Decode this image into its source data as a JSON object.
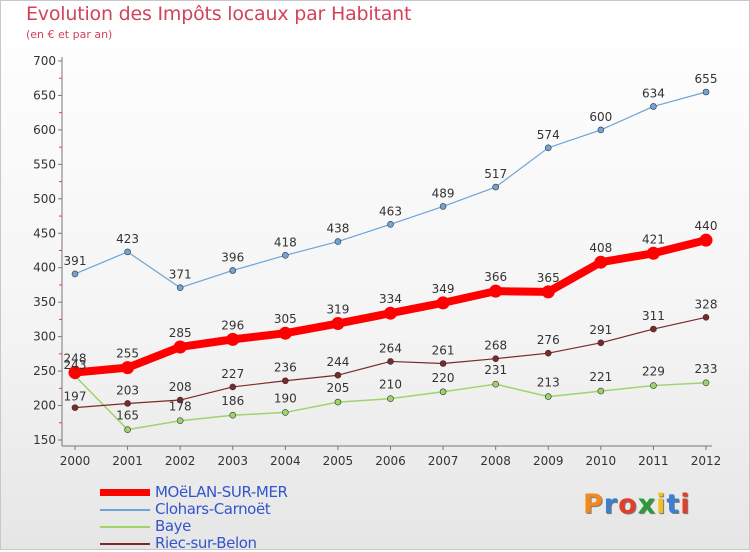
{
  "header": {
    "title": "Evolution des Impôts locaux par Habitant",
    "subtitle": "(en € et par an)"
  },
  "logo": {
    "text": "Proxiti",
    "colors": [
      "#f08a1c",
      "#3a7fd0",
      "#e0402a",
      "#2a9a3a",
      "#f0c020",
      "#3a7fd0",
      "#e0402a"
    ]
  },
  "chart_data": {
    "type": "line",
    "x": [
      "2000",
      "2001",
      "2002",
      "2003",
      "2004",
      "2005",
      "2006",
      "2007",
      "2008",
      "2009",
      "2010",
      "2011",
      "2012"
    ],
    "ylim": [
      150,
      700
    ],
    "yticks": [
      150,
      200,
      250,
      300,
      350,
      400,
      450,
      500,
      550,
      600,
      650,
      700
    ],
    "grid": false,
    "legend_position": "bottom-left",
    "series": [
      {
        "name": "MOëLAN-SUR-MER",
        "color": "#ff0000",
        "values": [
          248,
          255,
          285,
          296,
          305,
          319,
          334,
          349,
          366,
          365,
          408,
          421,
          440
        ]
      },
      {
        "name": "Clohars-Carnoët",
        "color": "#6ea4d6",
        "values": [
          391,
          423,
          371,
          396,
          418,
          438,
          463,
          489,
          517,
          574,
          600,
          634,
          655
        ]
      },
      {
        "name": "Baye",
        "color": "#9ed46a",
        "values": [
          243,
          165,
          178,
          186,
          190,
          205,
          210,
          220,
          231,
          213,
          221,
          229,
          233
        ]
      },
      {
        "name": "Riec-sur-Belon",
        "color": "#7a2a2a",
        "values": [
          197,
          203,
          208,
          227,
          236,
          244,
          264,
          261,
          268,
          276,
          291,
          311,
          328
        ]
      }
    ],
    "value_labels": {
      "MOëLAN-SUR-MER": [
        "248",
        "255",
        "285",
        "296",
        "305",
        "319",
        "334",
        "349",
        "366",
        "365",
        "408",
        "421",
        "440"
      ],
      "Clohars-Carnoët": [
        "391",
        "423",
        "371",
        "396",
        "418",
        "438",
        "463",
        "489",
        "517",
        "574",
        "600",
        "634",
        "655"
      ],
      "Baye": [
        "243",
        "165",
        "178",
        "186",
        "190",
        "205",
        "210",
        "220",
        "231",
        "213",
        "221",
        "229",
        "233"
      ],
      "Riec-sur-Belon": [
        "197",
        "203",
        "208",
        "227",
        "236",
        "244",
        "264",
        "261",
        "268",
        "276",
        "291",
        "311",
        "328"
      ]
    }
  }
}
